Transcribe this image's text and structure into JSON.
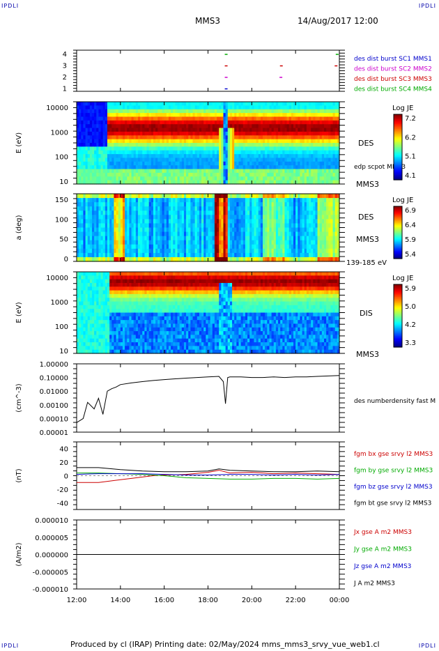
{
  "corners": {
    "tl": "IPDLI",
    "tr": "IPDLI",
    "bl": "IPDLI",
    "br": "IPDLI"
  },
  "header": {
    "spacecraft": "MMS3",
    "date": "14/Aug/2017 12:00"
  },
  "footer": {
    "text": "Produced by cl (IRAP)   Printing date: 02/May/2024   mms_mms3_srvy_vue_web1.cl"
  },
  "colors": {
    "red": "#cc0000",
    "green": "#00aa00",
    "blue": "#0000cc",
    "magenta": "#cc00cc",
    "black": "#000000"
  },
  "chart_data": [
    {
      "type": "scatter",
      "panel": "burst",
      "yticks": [
        "4",
        "3",
        "2",
        "1"
      ],
      "legend": [
        {
          "name": "des dist burst SC1 MMS1",
          "color": "#0000cc"
        },
        {
          "name": "des dist burst SC2 MMS2",
          "color": "#cc00cc"
        },
        {
          "name": "des dist burst SC3 MMS3",
          "color": "#cc0000"
        },
        {
          "name": "des dist burst SC4 MMS4",
          "color": "#00aa00"
        }
      ],
      "series": [
        {
          "sc": 1,
          "color": "#0000cc",
          "times": [
            18.83
          ]
        },
        {
          "sc": 2,
          "color": "#cc00cc",
          "times": [
            18.83,
            21.33
          ]
        },
        {
          "sc": 3,
          "color": "#cc0000",
          "times": [
            18.83,
            21.35,
            23.85
          ]
        },
        {
          "sc": 4,
          "color": "#00aa00",
          "times": [
            18.83,
            23.9
          ]
        }
      ]
    },
    {
      "type": "heatmap",
      "panel": "des_energy",
      "ylabel": "E (eV)",
      "yticks": [
        "10000",
        "1000",
        "100",
        "10"
      ],
      "ylog": true,
      "ylim": [
        10,
        30000
      ],
      "label": "DES",
      "sublabel": "edp scpot MMS3",
      "sc_label": "MMS3",
      "colorbar": {
        "title": "Log JE",
        "ticks": [
          "7.2",
          "6.2",
          "5.1",
          "4.1"
        ],
        "min": 4.1,
        "max": 7.2
      }
    },
    {
      "type": "heatmap",
      "panel": "des_pitch",
      "ylabel": "a (deg)",
      "yticks": [
        "150",
        "100",
        "50",
        "0"
      ],
      "ylim": [
        0,
        180
      ],
      "label": "DES",
      "sc_label": "MMS3",
      "energy_label": "139-185 eV",
      "colorbar": {
        "title": "Log JE",
        "ticks": [
          "6.9",
          "6.4",
          "5.9",
          "5.4"
        ],
        "min": 5.4,
        "max": 6.9
      }
    },
    {
      "type": "heatmap",
      "panel": "dis_energy",
      "ylabel": "E (eV)",
      "yticks": [
        "10000",
        "1000",
        "100",
        "10"
      ],
      "ylog": true,
      "ylim": [
        10,
        30000
      ],
      "label": "DIS",
      "sc_label": "MMS3",
      "colorbar": {
        "title": "Log JE",
        "ticks": [
          "5.9",
          "5.0",
          "4.2",
          "3.3"
        ],
        "min": 3.3,
        "max": 5.9
      }
    },
    {
      "type": "line",
      "panel": "density",
      "ylabel": "(cm^-3)",
      "ylog": true,
      "ylim": [
        1e-05,
        1
      ],
      "yticks": [
        "1.00000",
        "0.10000",
        "0.01000",
        "0.00100",
        "0.00010",
        "0.00001"
      ],
      "series": [
        {
          "name": "des numberdensity fast M",
          "color": "#000000",
          "x": [
            12.0,
            12.3,
            12.5,
            12.8,
            13.0,
            13.2,
            13.4,
            13.6,
            13.8,
            14.0,
            14.5,
            15.0,
            15.5,
            16.0,
            16.5,
            17.0,
            17.5,
            18.0,
            18.5,
            18.7,
            18.8,
            18.9,
            19.0,
            19.5,
            20.0,
            20.5,
            21.0,
            21.5,
            22.0,
            22.5,
            23.0,
            23.5,
            24.0
          ],
          "y": [
            5e-05,
            0.0001,
            0.0015,
            0.0005,
            0.003,
            0.0002,
            0.01,
            0.015,
            0.02,
            0.03,
            0.04,
            0.05,
            0.06,
            0.07,
            0.08,
            0.09,
            0.1,
            0.11,
            0.12,
            0.05,
            0.0012,
            0.1,
            0.11,
            0.11,
            0.1,
            0.1,
            0.11,
            0.1,
            0.11,
            0.11,
            0.12,
            0.13,
            0.14
          ]
        }
      ]
    },
    {
      "type": "line",
      "panel": "bfield",
      "ylabel": "(nT)",
      "ylim": [
        -50,
        50
      ],
      "yticks": [
        "40",
        "20",
        "0",
        "-20",
        "-40"
      ],
      "series": [
        {
          "name": "fgm bx gse srvy l2 MMS3",
          "color": "#cc0000",
          "x": [
            12.0,
            13.0,
            14.0,
            14.5,
            15.0,
            15.5,
            16.0,
            17.0,
            18.0,
            18.5,
            19.0,
            20.0,
            21.0,
            22.0,
            23.0,
            24.0
          ],
          "y": [
            -10,
            -10,
            -6,
            -4,
            -2,
            0,
            1,
            2,
            5,
            8,
            4,
            5,
            3,
            4,
            3,
            2
          ]
        },
        {
          "name": "fgm by gse srvy l2 MMS3",
          "color": "#00aa00",
          "x": [
            12.0,
            13.0,
            14.0,
            15.0,
            16.0,
            17.0,
            18.0,
            19.0,
            20.0,
            21.0,
            22.0,
            23.0,
            24.0
          ],
          "y": [
            4,
            4,
            3,
            2,
            0,
            -3,
            -4,
            -5,
            -5,
            -4,
            -4,
            -5,
            -4
          ]
        },
        {
          "name": "fgm bz gse srvy l2 MMS3",
          "color": "#0000cc",
          "x": [
            12.0,
            13.0,
            14.0,
            15.0,
            16.0,
            17.0,
            18.0,
            19.0,
            20.0,
            21.0,
            22.0,
            23.0,
            24.0
          ],
          "y": [
            2,
            3,
            3,
            3,
            2,
            1,
            1,
            2,
            2,
            1,
            2,
            1,
            2
          ]
        },
        {
          "name": "fgm bt gse srvy l2 MMS3",
          "color": "#000000",
          "x": [
            12.0,
            13.0,
            14.0,
            14.5,
            15.0,
            16.0,
            17.0,
            18.0,
            18.5,
            19.0,
            20.0,
            21.0,
            22.0,
            23.0,
            24.0
          ],
          "y": [
            12,
            12,
            9,
            8,
            7,
            6,
            6,
            7,
            10,
            8,
            7,
            6,
            6,
            7,
            6
          ]
        }
      ]
    },
    {
      "type": "line",
      "panel": "current",
      "ylabel": "(A/m2)",
      "ylim": [
        -1e-05,
        1e-05
      ],
      "yticks": [
        "0.000010",
        "0.000005",
        "0.000000",
        "-0.000005",
        "-0.000010"
      ],
      "series": [
        {
          "name": "Jx gse A m2 MMS3",
          "color": "#cc0000",
          "x": [
            12,
            24
          ],
          "y": [
            0,
            0
          ]
        },
        {
          "name": "Jy gse A m2 MMS3",
          "color": "#00aa00",
          "x": [
            12,
            24
          ],
          "y": [
            0,
            0
          ]
        },
        {
          "name": "Jz gse A m2 MMS3",
          "color": "#0000cc",
          "x": [
            12,
            24
          ],
          "y": [
            0,
            0
          ]
        },
        {
          "name": "J A m2 MMS3",
          "color": "#000000",
          "x": [
            12,
            24
          ],
          "y": [
            0,
            0
          ]
        }
      ]
    }
  ],
  "xaxis": {
    "ticks": [
      "12:00",
      "14:00",
      "16:00",
      "18:00",
      "20:00",
      "22:00",
      "00:00"
    ],
    "range": [
      12,
      24
    ]
  }
}
